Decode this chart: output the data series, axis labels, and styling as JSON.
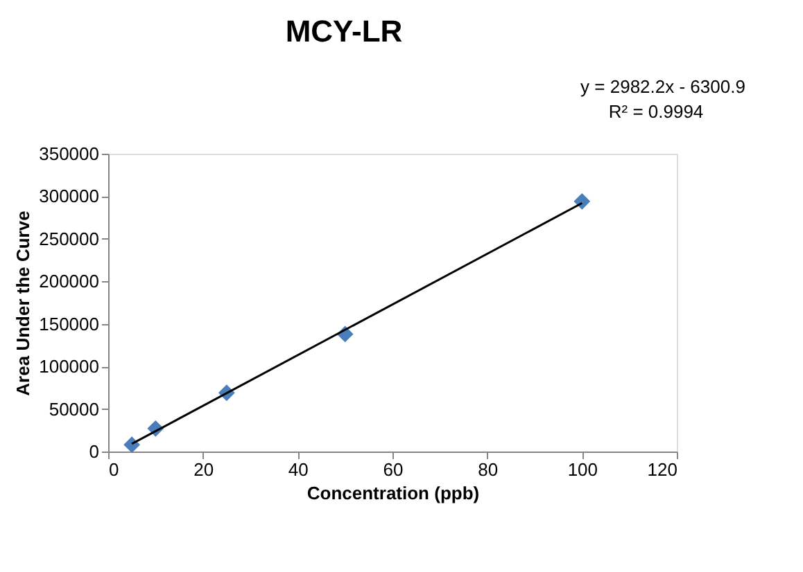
{
  "chart_data": {
    "type": "scatter",
    "title": "MCY-LR",
    "xlabel": "Concentration (ppb)",
    "ylabel": "Area Under the Curve",
    "xlim": [
      0,
      120
    ],
    "xticks": [
      0,
      20,
      40,
      60,
      80,
      100,
      120
    ],
    "ylim": [
      0,
      350000
    ],
    "yticks": [
      0,
      50000,
      100000,
      150000,
      200000,
      250000,
      300000,
      350000
    ],
    "grid": false,
    "marker": "diamond",
    "annotations": [
      "y = 2982.2x - 6300.9",
      "R² = 0.9994"
    ],
    "series": [
      {
        "color": "#4a7ebb",
        "x": [
          5,
          10,
          25,
          50,
          100
        ],
        "values": [
          8000,
          27000,
          69000,
          138000,
          294000
        ]
      },
      {
        "type": "line",
        "color": "#000000",
        "marker": "none",
        "line_style": "solid",
        "x": [
          5,
          100
        ],
        "values": [
          9000,
          292000
        ]
      }
    ]
  }
}
